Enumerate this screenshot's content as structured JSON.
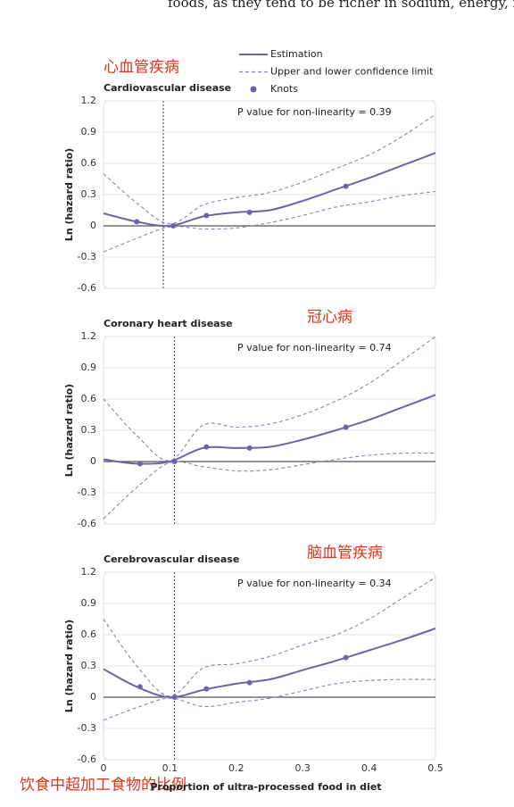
{
  "header_text": "foods, as they tend to be richer in sodium, energy, fa",
  "annotations": [
    "心血管疾病",
    "冠心病",
    "脑血管疾病",
    "饮食中超加工食物的比例"
  ],
  "legend": [
    {
      "name": "Estimation",
      "color": "#6f63a8",
      "style": "solid"
    },
    {
      "name": "Upper and lower confidence limit",
      "color": "#8c82bb",
      "style": "dashed"
    },
    {
      "name": "Knots",
      "color": "#6f63a8",
      "style": "dot"
    }
  ],
  "chart_data": [
    {
      "type": "line",
      "title": "Cardiovascular disease",
      "annotation": "P value for non-linearity = 0.39",
      "y_label": "Ln (hazard ratio)",
      "x": [
        0,
        0.05,
        0.1,
        0.15,
        0.2,
        0.25,
        0.3,
        0.35,
        0.4,
        0.45,
        0.5
      ],
      "xlim": [
        0,
        0.5
      ],
      "ylim": [
        -0.6,
        1.2
      ],
      "yticks": [
        -0.6,
        -0.3,
        0,
        0.3,
        0.6,
        0.9,
        1.2
      ],
      "grid": true,
      "zero_line": true,
      "ref_x": 0.09,
      "series": [
        {
          "style": "solid",
          "color": "#6f63a8",
          "values": [
            0.12,
            0.04,
            0.0,
            0.09,
            0.13,
            0.15,
            0.24,
            0.35,
            0.46,
            0.58,
            0.7
          ]
        },
        {
          "style": "dashed",
          "color": "#8c82bb",
          "values": [
            0.5,
            0.22,
            0.02,
            0.2,
            0.27,
            0.32,
            0.42,
            0.55,
            0.68,
            0.86,
            1.07
          ]
        },
        {
          "style": "dashed",
          "color": "#8c82bb",
          "values": [
            -0.25,
            -0.12,
            -0.01,
            -0.03,
            -0.02,
            0.03,
            0.1,
            0.18,
            0.23,
            0.29,
            0.33
          ]
        },
        {
          "style": "dot",
          "color": "#6f63a8",
          "x": [
            0.05,
            0.105,
            0.155,
            0.22,
            0.365
          ],
          "values": [
            0.04,
            0,
            0.1,
            0.13,
            0.38
          ]
        }
      ]
    },
    {
      "type": "line",
      "title": "Coronary heart disease",
      "annotation": "P value for non-linearity = 0.74",
      "y_label": "Ln (hazard ratio)",
      "x": [
        0,
        0.05,
        0.1,
        0.15,
        0.2,
        0.25,
        0.3,
        0.35,
        0.4,
        0.45,
        0.5
      ],
      "xlim": [
        0,
        0.5
      ],
      "ylim": [
        -0.6,
        1.2
      ],
      "yticks": [
        -0.6,
        -0.3,
        0,
        0.3,
        0.6,
        0.9,
        1.2
      ],
      "grid": true,
      "zero_line": true,
      "ref_x": 0.107,
      "series": [
        {
          "style": "solid",
          "color": "#6f63a8",
          "values": [
            0.02,
            -0.02,
            0.0,
            0.13,
            0.13,
            0.14,
            0.21,
            0.3,
            0.4,
            0.52,
            0.64
          ]
        },
        {
          "style": "dashed",
          "color": "#8c82bb",
          "values": [
            0.6,
            0.25,
            0.01,
            0.35,
            0.33,
            0.36,
            0.45,
            0.58,
            0.75,
            0.97,
            1.2
          ]
        },
        {
          "style": "dashed",
          "color": "#8c82bb",
          "values": [
            -0.55,
            -0.25,
            -0.01,
            -0.05,
            -0.09,
            -0.08,
            -0.03,
            0.02,
            0.06,
            0.08,
            0.08
          ]
        },
        {
          "style": "dot",
          "color": "#6f63a8",
          "x": [
            0.055,
            0.107,
            0.155,
            0.22,
            0.365
          ],
          "values": [
            -0.02,
            0,
            0.14,
            0.13,
            0.33
          ]
        }
      ]
    },
    {
      "type": "line",
      "title": "Cerebrovascular disease",
      "annotation": "P value for non-linearity = 0.34",
      "y_label": "Ln (hazard ratio)",
      "x_label": "Proportion of ultra-processed food in diet",
      "x": [
        0,
        0.05,
        0.1,
        0.15,
        0.2,
        0.25,
        0.3,
        0.35,
        0.4,
        0.45,
        0.5
      ],
      "xlim": [
        0,
        0.5
      ],
      "xticks": [
        0,
        0.1,
        0.2,
        0.3,
        0.4,
        0.5
      ],
      "ylim": [
        -0.6,
        1.2
      ],
      "yticks": [
        -0.6,
        -0.3,
        0,
        0.3,
        0.6,
        0.9,
        1.2
      ],
      "grid": true,
      "zero_line": true,
      "ref_x": 0.107,
      "series": [
        {
          "style": "solid",
          "color": "#6f63a8",
          "values": [
            0.27,
            0.1,
            0.0,
            0.07,
            0.13,
            0.17,
            0.26,
            0.35,
            0.45,
            0.55,
            0.66
          ]
        },
        {
          "style": "dashed",
          "color": "#8c82bb",
          "values": [
            0.75,
            0.3,
            0.01,
            0.28,
            0.32,
            0.39,
            0.5,
            0.6,
            0.75,
            0.95,
            1.15
          ]
        },
        {
          "style": "dashed",
          "color": "#8c82bb",
          "values": [
            -0.22,
            -0.1,
            -0.01,
            -0.09,
            -0.05,
            -0.01,
            0.06,
            0.13,
            0.16,
            0.17,
            0.17
          ]
        },
        {
          "style": "dot",
          "color": "#6f63a8",
          "x": [
            0.055,
            0.107,
            0.155,
            0.22,
            0.365
          ],
          "values": [
            0.1,
            0,
            0.08,
            0.14,
            0.38
          ]
        }
      ]
    }
  ]
}
